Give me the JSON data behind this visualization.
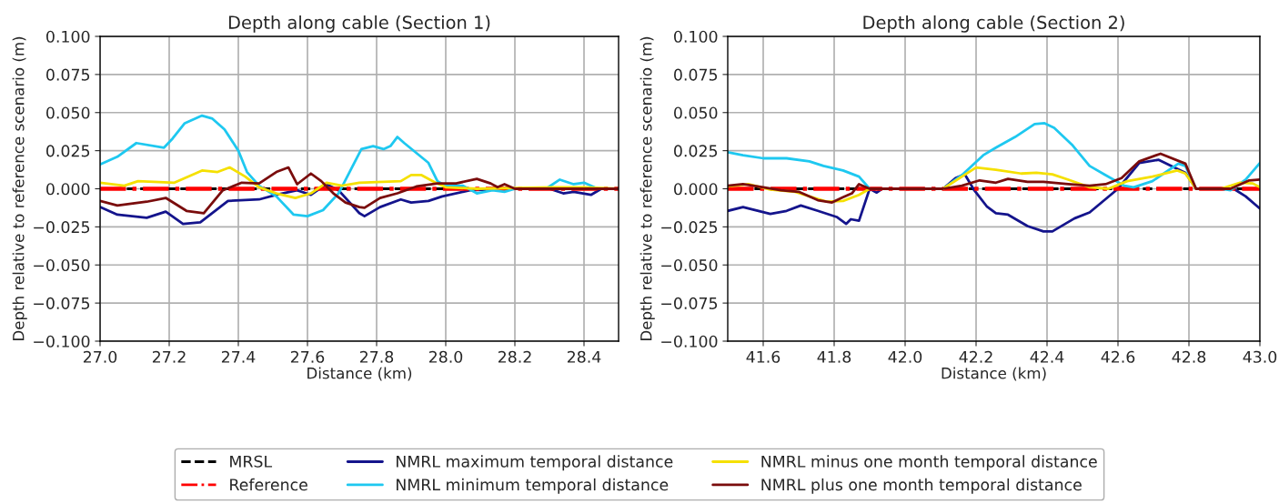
{
  "chart_data": [
    {
      "type": "line",
      "title": "Depth along cable (Section 1)",
      "xlabel": "Distance (km)",
      "ylabel": "Depth relative to reference scenario (m)",
      "grid": true,
      "legend": "bottom",
      "xlim": [
        27.0,
        28.5
      ],
      "xticks": [
        {
          "value": 27.0,
          "label": "27.0"
        },
        {
          "value": 27.2,
          "label": "27.2"
        },
        {
          "value": 27.4,
          "label": "27.4"
        },
        {
          "value": 27.6,
          "label": "27.6"
        },
        {
          "value": 27.8,
          "label": "27.8"
        },
        {
          "value": 28.0,
          "label": "28.0"
        },
        {
          "value": 28.2,
          "label": "28.2"
        },
        {
          "value": 28.4,
          "label": "28.4"
        }
      ],
      "ylim": [
        -0.1,
        0.1
      ],
      "yticks": [
        {
          "value": -0.1,
          "label": "−0.100"
        },
        {
          "value": -0.075,
          "label": "−0.075"
        },
        {
          "value": -0.05,
          "label": "−0.050"
        },
        {
          "value": -0.025,
          "label": "−0.025"
        },
        {
          "value": 0,
          "label": "0.000"
        },
        {
          "value": 0.025,
          "label": "0.025"
        },
        {
          "value": 0.05,
          "label": "0.050"
        },
        {
          "value": 0.075,
          "label": "0.075"
        },
        {
          "value": 0.1,
          "label": "0.100"
        }
      ],
      "series": [
        {
          "name": "MRSL",
          "color": "#000000",
          "line_style": "dashed",
          "x": [
            27.0,
            28.5
          ],
          "values": [
            0,
            0
          ]
        },
        {
          "name": "NMRL maximum temporal distance",
          "color": "#14148c",
          "line_style": "solid",
          "x": [
            27.0,
            27.05,
            27.135,
            27.19,
            27.24,
            27.29,
            27.37,
            27.46,
            27.51,
            27.57,
            27.61,
            27.655,
            27.69,
            27.75,
            27.765,
            27.81,
            27.87,
            27.9,
            27.95,
            27.99,
            28.07,
            28.2,
            28.3,
            28.34,
            28.37,
            28.42,
            28.45,
            28.5
          ],
          "values": [
            -0.012,
            -0.017,
            -0.019,
            -0.015,
            -0.023,
            -0.022,
            -0.008,
            -0.007,
            -0.004,
            -0.001,
            -0.004,
            0.003,
            -0.001,
            -0.016,
            -0.018,
            -0.012,
            -0.007,
            -0.009,
            -0.008,
            -0.005,
            -0.001,
            0,
            0,
            -0.003,
            -0.002,
            -0.004,
            0,
            0
          ]
        },
        {
          "name": "Reference",
          "color": "#ff0000",
          "line_style": "dashdot",
          "x": [
            27.0,
            28.5
          ],
          "values": [
            0,
            0
          ]
        },
        {
          "name": "NMRL minimum temporal distance",
          "color": "#1ec8f0",
          "line_style": "solid",
          "x": [
            27.0,
            27.05,
            27.105,
            27.185,
            27.21,
            27.245,
            27.295,
            27.325,
            27.36,
            27.4,
            27.425,
            27.46,
            27.51,
            27.56,
            27.6,
            27.645,
            27.69,
            27.756,
            27.79,
            27.82,
            27.84,
            27.86,
            27.88,
            27.95,
            27.976,
            28.0,
            28.05,
            28.09,
            28.135,
            28.17,
            28.2,
            28.29,
            28.33,
            28.37,
            28.4,
            28.44,
            28.5
          ],
          "values": [
            0.016,
            0.021,
            0.03,
            0.027,
            0.033,
            0.043,
            0.048,
            0.046,
            0.039,
            0.025,
            0.011,
            0.002,
            -0.005,
            -0.017,
            -0.018,
            -0.014,
            -0.003,
            0.026,
            0.028,
            0.026,
            0.028,
            0.034,
            0.03,
            0.017,
            0.005,
            0.002,
            0.002,
            -0.003,
            -0.001,
            -0.002,
            0,
            0,
            0.006,
            0.003,
            0.004,
            0,
            0
          ]
        },
        {
          "name": "NMRL minus one month temporal distance",
          "color": "#f5e000",
          "line_style": "solid",
          "x": [
            27.0,
            27.07,
            27.11,
            27.215,
            27.295,
            27.34,
            27.375,
            27.42,
            27.46,
            27.51,
            27.565,
            27.61,
            27.655,
            27.7,
            27.75,
            27.87,
            27.9,
            27.93,
            27.97,
            28.0,
            28.09,
            28.31,
            28.4,
            28.5
          ],
          "values": [
            0.004,
            0.002,
            0.005,
            0.004,
            0.012,
            0.011,
            0.014,
            0.008,
            0.001,
            -0.003,
            -0.006,
            -0.003,
            0.004,
            0.002,
            0.004,
            0.005,
            0.009,
            0.009,
            0.004,
            0.001,
            0,
            0.001,
            0.001,
            0
          ]
        },
        {
          "name": "NMRL plus one month temporal distance",
          "color": "#7a0c0c",
          "line_style": "solid",
          "x": [
            27.0,
            27.05,
            27.135,
            27.19,
            27.25,
            27.3,
            27.355,
            27.41,
            27.46,
            27.51,
            27.545,
            27.57,
            27.61,
            27.64,
            27.675,
            27.71,
            27.75,
            27.765,
            27.81,
            27.86,
            27.915,
            27.976,
            28.03,
            28.09,
            28.13,
            28.15,
            28.17,
            28.2,
            28.5
          ],
          "values": [
            -0.008,
            -0.011,
            -0.0085,
            -0.006,
            -0.0145,
            -0.016,
            -0.001,
            0.004,
            0.0035,
            0.011,
            0.014,
            0.003,
            0.01,
            0.005,
            -0.003,
            -0.009,
            -0.012,
            -0.0125,
            -0.006,
            -0.003,
            0.0015,
            0.0035,
            0.0035,
            0.0065,
            0.0035,
            0.001,
            0.003,
            0,
            0
          ]
        }
      ]
    },
    {
      "type": "line",
      "title": "Depth along cable (Section 2)",
      "xlabel": "Distance (km)",
      "ylabel": "Depth relative to reference scenario (m)",
      "grid": true,
      "xlim": [
        41.5,
        43.0
      ],
      "xticks": [
        {
          "value": 41.6,
          "label": "41.6"
        },
        {
          "value": 41.8,
          "label": "41.8"
        },
        {
          "value": 42.0,
          "label": "42.0"
        },
        {
          "value": 42.2,
          "label": "42.2"
        },
        {
          "value": 42.4,
          "label": "42.4"
        },
        {
          "value": 42.6,
          "label": "42.6"
        },
        {
          "value": 42.8,
          "label": "42.8"
        },
        {
          "value": 43.0,
          "label": "43.0"
        }
      ],
      "ylim": [
        -0.1,
        0.1
      ],
      "yticks": [
        {
          "value": -0.1,
          "label": "−0.100"
        },
        {
          "value": -0.075,
          "label": "−0.075"
        },
        {
          "value": -0.05,
          "label": "−0.050"
        },
        {
          "value": -0.025,
          "label": "−0.025"
        },
        {
          "value": 0,
          "label": "0.000"
        },
        {
          "value": 0.025,
          "label": "0.025"
        },
        {
          "value": 0.05,
          "label": "0.050"
        },
        {
          "value": 0.075,
          "label": "0.075"
        },
        {
          "value": 0.1,
          "label": "0.100"
        }
      ],
      "series": [
        {
          "color": "#000000",
          "line_style": "dashed",
          "x": [
            41.5,
            43.0
          ],
          "values": [
            0,
            0
          ]
        },
        {
          "color": "#14148c",
          "line_style": "solid",
          "x": [
            41.5,
            41.543,
            41.62,
            41.666,
            41.706,
            41.754,
            41.807,
            41.834,
            41.847,
            41.87,
            41.9,
            41.92,
            41.935,
            42.107,
            42.142,
            42.168,
            42.195,
            42.23,
            42.256,
            42.29,
            42.345,
            42.39,
            42.415,
            42.477,
            42.52,
            42.6,
            42.66,
            42.715,
            42.79,
            42.82,
            42.926,
            42.96,
            43.0
          ],
          "values": [
            -0.0145,
            -0.012,
            -0.0165,
            -0.0145,
            -0.011,
            -0.0145,
            -0.0185,
            -0.023,
            -0.02,
            -0.021,
            0,
            -0.0025,
            0,
            0,
            0.007,
            0.0095,
            -0.001,
            -0.0115,
            -0.016,
            -0.017,
            -0.0245,
            -0.028,
            -0.028,
            -0.0195,
            -0.0155,
            0,
            0.017,
            0.019,
            0.0105,
            0,
            0,
            -0.005,
            -0.013
          ]
        },
        {
          "color": "#ff0000",
          "line_style": "dashdot",
          "x": [
            41.5,
            43.0
          ],
          "values": [
            0,
            0
          ]
        },
        {
          "color": "#1ec8f0",
          "line_style": "solid",
          "x": [
            41.5,
            41.543,
            41.6,
            41.666,
            41.73,
            41.77,
            41.825,
            41.87,
            41.9,
            42.107,
            42.16,
            42.22,
            42.256,
            42.31,
            42.365,
            42.393,
            42.42,
            42.47,
            42.52,
            42.565,
            42.618,
            42.644,
            42.697,
            42.77,
            42.79,
            42.82,
            42.89,
            42.917,
            42.96,
            43.0
          ],
          "values": [
            0.024,
            0.022,
            0.02,
            0.02,
            0.018,
            0.015,
            0.012,
            0.008,
            0,
            0,
            0.009,
            0.022,
            0.027,
            0.034,
            0.0425,
            0.043,
            0.04,
            0.029,
            0.015,
            0.009,
            0.002,
            0.001,
            0.005,
            0.0165,
            0.015,
            0,
            0,
            -0.001,
            0.006,
            0.017
          ]
        },
        {
          "color": "#f5e000",
          "line_style": "solid",
          "x": [
            41.5,
            41.56,
            41.62,
            41.69,
            41.745,
            41.78,
            41.825,
            41.87,
            41.9,
            42.107,
            42.16,
            42.2,
            42.256,
            42.327,
            42.37,
            42.415,
            42.46,
            42.52,
            42.573,
            42.626,
            42.697,
            42.767,
            42.79,
            42.82,
            42.89,
            42.944,
            42.98,
            43.0
          ],
          "values": [
            0.0015,
            0.003,
            -0.0005,
            -0.002,
            -0.006,
            -0.0085,
            -0.008,
            -0.004,
            0,
            0,
            0.008,
            0.014,
            0.0125,
            0.01,
            0.0105,
            0.0095,
            0.006,
            0.001,
            0,
            0.005,
            0.008,
            0.012,
            0.01,
            0,
            0,
            0.004,
            0.0035,
            0.001
          ]
        },
        {
          "color": "#7a0c0c",
          "line_style": "solid",
          "x": [
            41.5,
            41.543,
            41.6,
            41.65,
            41.7,
            41.754,
            41.794,
            41.825,
            41.85,
            41.87,
            41.9,
            42.107,
            42.16,
            42.21,
            42.256,
            42.29,
            42.345,
            42.39,
            42.46,
            42.52,
            42.565,
            42.61,
            42.66,
            42.72,
            42.79,
            42.82,
            42.917,
            42.97,
            43.0
          ],
          "values": [
            0.002,
            0.003,
            0.001,
            -0.001,
            -0.002,
            -0.0075,
            -0.009,
            -0.0055,
            -0.003,
            0.003,
            0,
            0,
            0.002,
            0.0055,
            0.004,
            0.0065,
            0.0045,
            0.0045,
            0.003,
            0.002,
            0.003,
            0.007,
            0.018,
            0.023,
            0.0165,
            0,
            0,
            0.0055,
            0.006
          ]
        }
      ]
    }
  ]
}
